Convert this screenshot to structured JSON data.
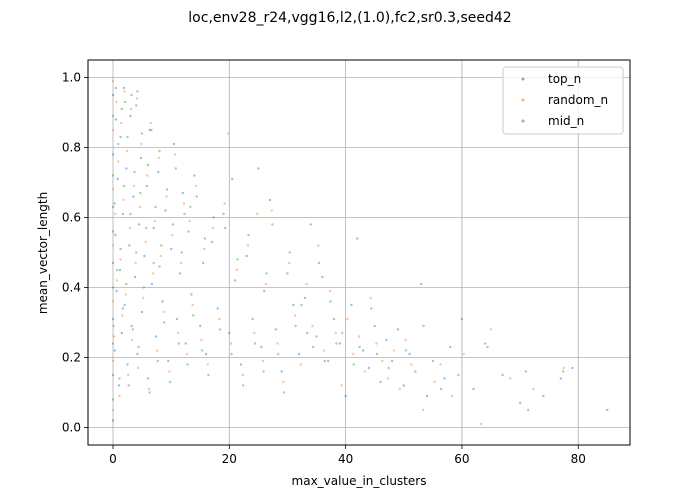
{
  "chart_data": {
    "type": "scatter",
    "title": "loc,env28_r24,vgg16,l2,(1.0),fc2,sr0.3,seed42",
    "xlabel": "max_value_in_clusters",
    "ylabel": "mean_vector_length",
    "xlim": [
      -4.3,
      88.9
    ],
    "ylim": [
      -0.05,
      1.05
    ],
    "xticks": [
      0,
      20,
      40,
      60,
      80
    ],
    "yticks": [
      0.0,
      0.2,
      0.4,
      0.6,
      0.8,
      1.0
    ],
    "xtick_labels": [
      "0",
      "20",
      "40",
      "60",
      "80"
    ],
    "ytick_labels": [
      "0.0",
      "0.2",
      "0.4",
      "0.6",
      "0.8",
      "1.0"
    ],
    "grid": true,
    "legend_position": "top-right",
    "series": [
      {
        "name": "top_n",
        "color": "#1f77b4",
        "points": [
          [
            0.0,
            0.02
          ],
          [
            0.0,
            0.15
          ],
          [
            0.0,
            0.31
          ],
          [
            0.0,
            0.47
          ],
          [
            0.0,
            0.63
          ],
          [
            0.0,
            0.78
          ],
          [
            0.0,
            0.95
          ],
          [
            0.3,
            0.22
          ],
          [
            0.4,
            0.55
          ],
          [
            0.5,
            0.88
          ],
          [
            0.6,
            0.39
          ],
          [
            0.8,
            0.71
          ],
          [
            1.0,
            0.12
          ],
          [
            1.2,
            0.45
          ],
          [
            1.3,
            0.83
          ],
          [
            1.5,
            0.27
          ],
          [
            1.7,
            0.61
          ],
          [
            1.9,
            0.97
          ],
          [
            2.0,
            0.35
          ],
          [
            2.3,
            0.74
          ],
          [
            2.5,
            0.18
          ],
          [
            2.8,
            0.52
          ],
          [
            3.0,
            0.89
          ],
          [
            3.2,
            0.29
          ],
          [
            3.5,
            0.66
          ],
          [
            3.8,
            0.43
          ],
          [
            4.0,
            0.92
          ],
          [
            4.2,
            0.21
          ],
          [
            4.5,
            0.58
          ],
          [
            4.8,
            0.77
          ],
          [
            5.0,
            0.33
          ],
          [
            5.4,
            0.49
          ],
          [
            5.8,
            0.69
          ],
          [
            6.0,
            0.14
          ],
          [
            6.3,
            0.85
          ],
          [
            6.7,
            0.41
          ],
          [
            7.0,
            0.57
          ],
          [
            7.4,
            0.26
          ],
          [
            7.8,
            0.73
          ],
          [
            8.0,
            0.46
          ],
          [
            8.5,
            0.36
          ],
          [
            9.0,
            0.62
          ],
          [
            9.5,
            0.19
          ],
          [
            10.0,
            0.51
          ],
          [
            10.5,
            0.81
          ],
          [
            11.0,
            0.31
          ],
          [
            11.5,
            0.44
          ],
          [
            12.0,
            0.67
          ],
          [
            12.5,
            0.24
          ],
          [
            13.0,
            0.56
          ],
          [
            13.5,
            0.38
          ],
          [
            14.0,
            0.72
          ],
          [
            15.0,
            0.29
          ],
          [
            15.5,
            0.47
          ],
          [
            16.0,
            0.21
          ],
          [
            17.0,
            0.53
          ],
          [
            18.0,
            0.34
          ],
          [
            19.0,
            0.61
          ],
          [
            20.0,
            0.27
          ],
          [
            20.5,
            0.71
          ],
          [
            21.0,
            0.42
          ],
          [
            22.0,
            0.18
          ],
          [
            23.0,
            0.49
          ],
          [
            24.0,
            0.31
          ],
          [
            25.0,
            0.74
          ],
          [
            25.5,
            0.23
          ],
          [
            26.0,
            0.39
          ],
          [
            27.0,
            0.65
          ],
          [
            28.0,
            0.28
          ],
          [
            29.0,
            0.16
          ],
          [
            30.0,
            0.44
          ],
          [
            31.0,
            0.35
          ],
          [
            32.0,
            0.21
          ],
          [
            33.0,
            0.37
          ],
          [
            34.0,
            0.58
          ],
          [
            35.0,
            0.26
          ],
          [
            36.0,
            0.43
          ],
          [
            37.0,
            0.19
          ],
          [
            38.0,
            0.31
          ],
          [
            39.0,
            0.24
          ],
          [
            40.0,
            0.09
          ],
          [
            41.0,
            0.35
          ],
          [
            42.0,
            0.54
          ],
          [
            43.0,
            0.22
          ],
          [
            44.0,
            0.17
          ],
          [
            45.0,
            0.29
          ],
          [
            46.0,
            0.13
          ],
          [
            47.0,
            0.25
          ],
          [
            48.0,
            0.19
          ],
          [
            49.0,
            0.28
          ],
          [
            50.0,
            0.12
          ],
          [
            51.0,
            0.21
          ],
          [
            52.0,
            0.16
          ],
          [
            53.0,
            0.41
          ],
          [
            54.0,
            0.09
          ],
          [
            55.0,
            0.19
          ],
          [
            57.0,
            0.14
          ],
          [
            58.0,
            0.23
          ],
          [
            60.0,
            0.31
          ],
          [
            62.0,
            0.11
          ],
          [
            64.0,
            0.24
          ],
          [
            67.0,
            0.15
          ],
          [
            70.0,
            0.07
          ],
          [
            71.0,
            0.16
          ],
          [
            74.0,
            0.09
          ],
          [
            77.0,
            0.14
          ],
          [
            79.0,
            0.17
          ],
          [
            85.0,
            0.05
          ]
        ]
      },
      {
        "name": "random_n",
        "color": "#ff7f0e",
        "points": [
          [
            0.0,
            0.05
          ],
          [
            0.0,
            0.19
          ],
          [
            0.0,
            0.36
          ],
          [
            0.0,
            0.52
          ],
          [
            0.0,
            0.68
          ],
          [
            0.0,
            0.85
          ],
          [
            0.0,
            0.99
          ],
          [
            0.2,
            0.26
          ],
          [
            0.4,
            0.61
          ],
          [
            0.6,
            0.93
          ],
          [
            0.7,
            0.42
          ],
          [
            0.9,
            0.76
          ],
          [
            1.1,
            0.09
          ],
          [
            1.3,
            0.48
          ],
          [
            1.4,
            0.87
          ],
          [
            1.6,
            0.32
          ],
          [
            1.8,
            0.65
          ],
          [
            2.0,
            0.96
          ],
          [
            2.2,
            0.38
          ],
          [
            2.4,
            0.79
          ],
          [
            2.6,
            0.15
          ],
          [
            2.9,
            0.57
          ],
          [
            3.1,
            0.91
          ],
          [
            3.3,
            0.25
          ],
          [
            3.6,
            0.69
          ],
          [
            3.9,
            0.47
          ],
          [
            4.1,
            0.94
          ],
          [
            4.3,
            0.17
          ],
          [
            4.6,
            0.63
          ],
          [
            4.9,
            0.81
          ],
          [
            5.2,
            0.37
          ],
          [
            5.6,
            0.53
          ],
          [
            5.9,
            0.72
          ],
          [
            6.2,
            0.11
          ],
          [
            6.5,
            0.87
          ],
          [
            6.9,
            0.44
          ],
          [
            7.2,
            0.59
          ],
          [
            7.6,
            0.22
          ],
          [
            7.9,
            0.77
          ],
          [
            8.2,
            0.49
          ],
          [
            8.7,
            0.33
          ],
          [
            9.2,
            0.66
          ],
          [
            9.7,
            0.16
          ],
          [
            10.2,
            0.55
          ],
          [
            10.7,
            0.78
          ],
          [
            11.2,
            0.27
          ],
          [
            11.7,
            0.47
          ],
          [
            12.2,
            0.64
          ],
          [
            12.7,
            0.21
          ],
          [
            13.2,
            0.59
          ],
          [
            13.7,
            0.35
          ],
          [
            14.3,
            0.69
          ],
          [
            15.2,
            0.25
          ],
          [
            15.7,
            0.51
          ],
          [
            16.3,
            0.18
          ],
          [
            17.2,
            0.57
          ],
          [
            18.3,
            0.31
          ],
          [
            19.2,
            0.64
          ],
          [
            19.8,
            0.84
          ],
          [
            20.3,
            0.24
          ],
          [
            21.3,
            0.45
          ],
          [
            22.3,
            0.15
          ],
          [
            23.2,
            0.52
          ],
          [
            24.3,
            0.27
          ],
          [
            24.8,
            0.61
          ],
          [
            25.8,
            0.19
          ],
          [
            26.3,
            0.41
          ],
          [
            27.3,
            0.62
          ],
          [
            28.3,
            0.24
          ],
          [
            29.3,
            0.13
          ],
          [
            30.3,
            0.47
          ],
          [
            31.3,
            0.32
          ],
          [
            32.3,
            0.18
          ],
          [
            33.3,
            0.41
          ],
          [
            34.3,
            0.29
          ],
          [
            35.3,
            0.52
          ],
          [
            36.3,
            0.22
          ],
          [
            37.3,
            0.39
          ],
          [
            38.3,
            0.27
          ],
          [
            39.3,
            0.12
          ],
          [
            40.3,
            0.31
          ],
          [
            41.3,
            0.21
          ],
          [
            42.3,
            0.26
          ],
          [
            43.3,
            0.16
          ],
          [
            44.3,
            0.37
          ],
          [
            45.3,
            0.24
          ],
          [
            46.3,
            0.19
          ],
          [
            47.3,
            0.14
          ],
          [
            48.3,
            0.22
          ],
          [
            49.3,
            0.11
          ],
          [
            50.3,
            0.25
          ],
          [
            51.3,
            0.18
          ],
          [
            53.3,
            0.05
          ],
          [
            55.3,
            0.13
          ],
          [
            56.3,
            0.18
          ],
          [
            58.3,
            0.09
          ],
          [
            60.3,
            0.21
          ],
          [
            63.3,
            0.01
          ],
          [
            65.0,
            0.28
          ],
          [
            68.3,
            0.14
          ],
          [
            72.3,
            0.11
          ],
          [
            77.5,
            0.17
          ]
        ]
      },
      {
        "name": "mid_n",
        "color": "#2ca02c",
        "points": [
          [
            0.0,
            0.08
          ],
          [
            0.0,
            0.24
          ],
          [
            0.0,
            0.4
          ],
          [
            0.0,
            0.56
          ],
          [
            0.0,
            0.72
          ],
          [
            0.0,
            0.89
          ],
          [
            0.1,
            0.29
          ],
          [
            0.3,
            0.64
          ],
          [
            0.5,
            0.97
          ],
          [
            0.7,
            0.45
          ],
          [
            0.9,
            0.81
          ],
          [
            1.1,
            0.14
          ],
          [
            1.3,
            0.51
          ],
          [
            1.5,
            0.91
          ],
          [
            1.7,
            0.34
          ],
          [
            1.9,
            0.69
          ],
          [
            2.1,
            0.93
          ],
          [
            2.3,
            0.41
          ],
          [
            2.5,
            0.83
          ],
          [
            2.7,
            0.12
          ],
          [
            3.0,
            0.61
          ],
          [
            3.2,
            0.95
          ],
          [
            3.4,
            0.28
          ],
          [
            3.7,
            0.73
          ],
          [
            4.0,
            0.5
          ],
          [
            4.2,
            0.96
          ],
          [
            4.4,
            0.23
          ],
          [
            4.7,
            0.67
          ],
          [
            5.0,
            0.84
          ],
          [
            5.3,
            0.4
          ],
          [
            5.7,
            0.57
          ],
          [
            6.0,
            0.75
          ],
          [
            6.3,
            0.1
          ],
          [
            6.6,
            0.85
          ],
          [
            7.0,
            0.47
          ],
          [
            7.3,
            0.63
          ],
          [
            7.7,
            0.19
          ],
          [
            8.0,
            0.79
          ],
          [
            8.3,
            0.52
          ],
          [
            8.8,
            0.3
          ],
          [
            9.3,
            0.68
          ],
          [
            9.8,
            0.13
          ],
          [
            10.3,
            0.58
          ],
          [
            10.8,
            0.74
          ],
          [
            11.3,
            0.24
          ],
          [
            11.8,
            0.5
          ],
          [
            12.3,
            0.61
          ],
          [
            12.8,
            0.18
          ],
          [
            13.3,
            0.63
          ],
          [
            13.8,
            0.32
          ],
          [
            14.4,
            0.66
          ],
          [
            15.3,
            0.22
          ],
          [
            15.8,
            0.54
          ],
          [
            16.4,
            0.15
          ],
          [
            17.3,
            0.6
          ],
          [
            18.4,
            0.28
          ],
          [
            19.3,
            0.57
          ],
          [
            20.4,
            0.21
          ],
          [
            21.4,
            0.48
          ],
          [
            22.4,
            0.12
          ],
          [
            23.3,
            0.55
          ],
          [
            24.4,
            0.24
          ],
          [
            25.9,
            0.16
          ],
          [
            26.4,
            0.44
          ],
          [
            27.4,
            0.58
          ],
          [
            28.4,
            0.21
          ],
          [
            29.4,
            0.1
          ],
          [
            30.4,
            0.5
          ],
          [
            31.4,
            0.29
          ],
          [
            32.4,
            0.35
          ],
          [
            33.4,
            0.27
          ],
          [
            34.4,
            0.23
          ],
          [
            35.4,
            0.47
          ],
          [
            36.4,
            0.19
          ],
          [
            37.4,
            0.36
          ],
          [
            38.4,
            0.24
          ],
          [
            39.4,
            0.27
          ],
          [
            41.4,
            0.18
          ],
          [
            42.4,
            0.23
          ],
          [
            44.4,
            0.34
          ],
          [
            45.4,
            0.21
          ],
          [
            47.4,
            0.17
          ],
          [
            50.4,
            0.22
          ],
          [
            53.4,
            0.29
          ],
          [
            56.4,
            0.11
          ],
          [
            59.4,
            0.15
          ],
          [
            64.4,
            0.23
          ],
          [
            71.4,
            0.05
          ],
          [
            77.4,
            0.16
          ]
        ]
      }
    ]
  }
}
